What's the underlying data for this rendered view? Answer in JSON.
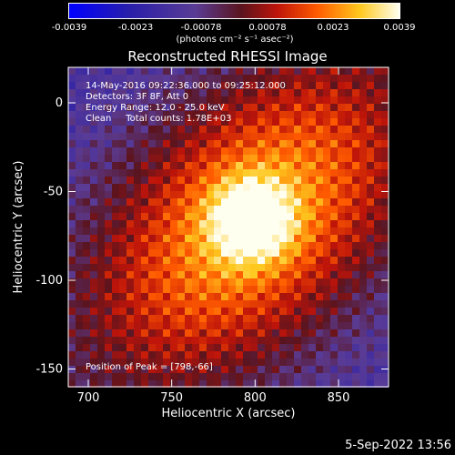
{
  "colorbar": {
    "ticks": [
      "-0.0039",
      "-0.0023",
      "-0.00078",
      "0.00078",
      "0.0023",
      "0.0039"
    ],
    "unit": "(photons cm⁻² s⁻¹ asec⁻²)"
  },
  "chart_data": {
    "type": "heatmap",
    "title": "Reconstructed RHESSI Image",
    "xlabel": "Heliocentric X (arcsec)",
    "ylabel": "Heliocentric Y (arcsec)",
    "xlim": [
      688,
      880
    ],
    "ylim": [
      -160,
      20
    ],
    "xticks": [
      700,
      750,
      800,
      850
    ],
    "yticks": [
      0,
      -50,
      -100,
      -150
    ],
    "peak": {
      "x": 798,
      "y": -66
    },
    "colormap": "black-purple-red-orange-yellow-white",
    "zlim": [
      -0.0039,
      0.0039
    ]
  },
  "info": {
    "time": "14-May-2016 09:22:36.000 to 09:25:12.000",
    "detectors": "Detectors: 3F 8F, Att 0",
    "energy": "Energy Range: 12.0 - 25.0 keV",
    "clean": "Clean     Total counts: 1.78E+03",
    "peak_label": "Position of Peak = [798,-66]"
  },
  "footer": {
    "timestamp": "5-Sep-2022 13:56"
  }
}
